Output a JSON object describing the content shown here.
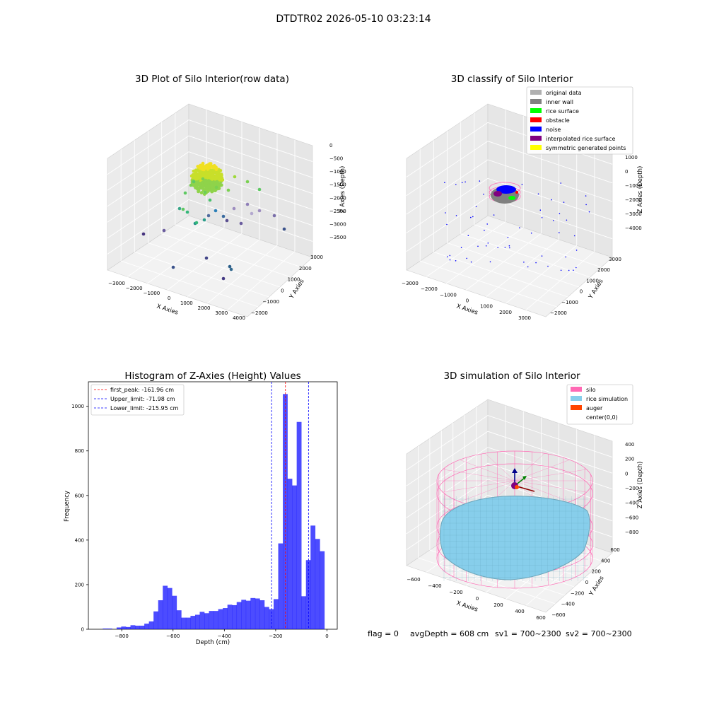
{
  "suptitle": "DTDTR02 2026-05-10 03:23:14",
  "footer": {
    "flag": "flag = 0",
    "avg": "avgDepth = 608 cm",
    "sv1": "sv1 = 700~2300",
    "sv2": "sv2 = 700~2300"
  },
  "chart_data": [
    {
      "type": "scatter",
      "title": "3D Plot of Silo Interior(row data)",
      "xlabel": "X Axies",
      "ylabel": "Y Axies",
      "zlabel": "Z Axies (Depth)",
      "xticks": [
        "−3000",
        "−2000",
        "−1000",
        "0",
        "1000",
        "2000",
        "3000",
        "4000"
      ],
      "yticks": [
        "−2000",
        "−1000",
        "0",
        "1000",
        "2000",
        "3000"
      ],
      "zticks": [
        "0",
        "−500",
        "−1000",
        "−1500",
        "−2000",
        "−2500",
        "−3000",
        "−3500"
      ],
      "colormap": "viridis",
      "note_points": "dense yellow-green cluster near z≈-700 to -1200, sparse teal/purple points lower"
    },
    {
      "type": "scatter",
      "title": "3D classify of Silo Interior",
      "xlabel": "X Axies",
      "ylabel": "Y Axies",
      "zlabel": "Z Axies (Depth)",
      "xticks": [
        "−3000",
        "−2000",
        "−1000",
        "0",
        "1000",
        "2000",
        "3000"
      ],
      "yticks": [
        "−2000",
        "−1000",
        "0",
        "1000",
        "2000",
        "3000"
      ],
      "zticks": [
        "1000",
        "0",
        "−1000",
        "−2000",
        "−3000",
        "−4000"
      ],
      "legend": [
        {
          "label": "original data",
          "color": "#b0b0b0"
        },
        {
          "label": "inner wall",
          "color": "#808080"
        },
        {
          "label": "rice surface",
          "color": "#00ff00"
        },
        {
          "label": "obstacle",
          "color": "#ff0000"
        },
        {
          "label": "noise",
          "color": "#0000ff"
        },
        {
          "label": "interpolated rice surface",
          "color": "#800080"
        },
        {
          "label": "symmetric generated points",
          "color": "#ffff00"
        }
      ]
    },
    {
      "type": "bar",
      "title": "Histogram of Z-Axies (Height) Values",
      "xlabel": "Depth (cm)",
      "ylabel": "Frequency",
      "xlim": [
        -930,
        40
      ],
      "ylim": [
        0,
        1110
      ],
      "xticks": [
        "−800",
        "−600",
        "−400",
        "−200",
        "0"
      ],
      "yticks": [
        "0",
        "200",
        "400",
        "600",
        "800",
        "1000"
      ],
      "bin_width": 18,
      "bins": [
        {
          "x": -874,
          "v": 3
        },
        {
          "x": -856,
          "v": 3
        },
        {
          "x": -838,
          "v": 0
        },
        {
          "x": -820,
          "v": 8
        },
        {
          "x": -802,
          "v": 12
        },
        {
          "x": -784,
          "v": 10
        },
        {
          "x": -766,
          "v": 18
        },
        {
          "x": -748,
          "v": 16
        },
        {
          "x": -730,
          "v": 16
        },
        {
          "x": -712,
          "v": 25
        },
        {
          "x": -694,
          "v": 35
        },
        {
          "x": -676,
          "v": 80
        },
        {
          "x": -658,
          "v": 130
        },
        {
          "x": -640,
          "v": 195
        },
        {
          "x": -622,
          "v": 185
        },
        {
          "x": -604,
          "v": 150
        },
        {
          "x": -586,
          "v": 85
        },
        {
          "x": -568,
          "v": 52
        },
        {
          "x": -550,
          "v": 52
        },
        {
          "x": -532,
          "v": 60
        },
        {
          "x": -514,
          "v": 65
        },
        {
          "x": -496,
          "v": 78
        },
        {
          "x": -478,
          "v": 72
        },
        {
          "x": -460,
          "v": 82
        },
        {
          "x": -442,
          "v": 82
        },
        {
          "x": -424,
          "v": 90
        },
        {
          "x": -406,
          "v": 95
        },
        {
          "x": -388,
          "v": 110
        },
        {
          "x": -370,
          "v": 108
        },
        {
          "x": -352,
          "v": 122
        },
        {
          "x": -334,
          "v": 132
        },
        {
          "x": -316,
          "v": 128
        },
        {
          "x": -298,
          "v": 140
        },
        {
          "x": -280,
          "v": 138
        },
        {
          "x": -262,
          "v": 130
        },
        {
          "x": -244,
          "v": 100
        },
        {
          "x": -226,
          "v": 90
        },
        {
          "x": -208,
          "v": 135
        },
        {
          "x": -190,
          "v": 385
        },
        {
          "x": -172,
          "v": 1055
        },
        {
          "x": -154,
          "v": 675
        },
        {
          "x": -136,
          "v": 645
        },
        {
          "x": -118,
          "v": 930
        },
        {
          "x": -100,
          "v": 148
        },
        {
          "x": -82,
          "v": 310
        },
        {
          "x": -64,
          "v": 465
        },
        {
          "x": -46,
          "v": 405
        },
        {
          "x": -28,
          "v": 350
        }
      ],
      "bar_color": "#0000ff",
      "vlines": [
        {
          "x": -161.96,
          "color": "#ff0000",
          "label": "first_peak: -161.96 cm"
        },
        {
          "x": -71.98,
          "color": "#0000ff",
          "label": "Upper_limit: -71.98 cm"
        },
        {
          "x": -215.95,
          "color": "#0000ff",
          "label": "Lower_limit: -215.95 cm"
        }
      ]
    },
    {
      "type": "area",
      "title": "3D simulation of Silo Interior",
      "xlabel": "X Axies",
      "ylabel": "Y Axies",
      "zlabel": "Z Axies (Depth)",
      "xticks": [
        "−600",
        "−400",
        "−200",
        "0",
        "200",
        "400",
        "600"
      ],
      "yticks": [
        "−600",
        "−400",
        "−200",
        "0",
        "200",
        "400",
        "600"
      ],
      "zticks": [
        "400",
        "200",
        "0",
        "−200",
        "−400",
        "−600",
        "−800"
      ],
      "legend": [
        {
          "label": "silo",
          "color": "#ff69b4"
        },
        {
          "label": "rice simulation",
          "color": "#87ceeb"
        },
        {
          "label": "auger",
          "color": "#ff4500"
        },
        {
          "label": "center(0,0)",
          "color": "#ffffff"
        }
      ]
    }
  ]
}
